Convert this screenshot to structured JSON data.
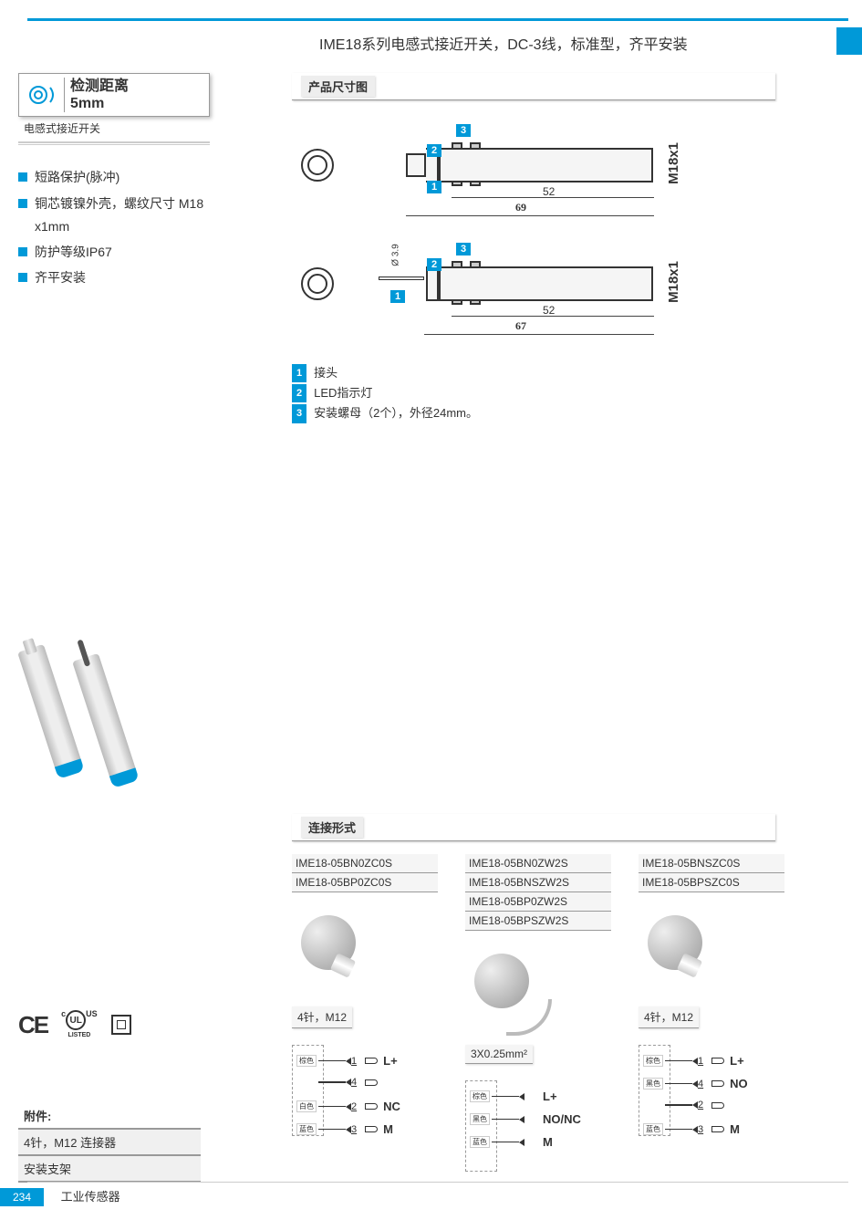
{
  "header": {
    "title": "IME18系列电感式接近开关，DC-3线，标准型，齐平安装"
  },
  "sidebar": {
    "detect_label": "检测距离",
    "detect_value": "5mm",
    "sub_label": "电感式接近开关",
    "features": [
      "短路保护(脉冲)",
      "铜芯镀镍外壳，螺纹尺寸 M18 x1mm",
      "防护等级IP67",
      "齐平安装"
    ],
    "acc_title": "附件:",
    "acc_items": [
      "4针，M12 连接器",
      "安装支架"
    ],
    "cert": {
      "ce": "CE",
      "ul_top": "c",
      "ul_right": "US",
      "ul_listed": "LISTED"
    }
  },
  "dim": {
    "section_title": "产品尺寸图",
    "top": {
      "len1": "52",
      "len_total": "69",
      "thread": "M18x1",
      "n1": "1",
      "n2": "2",
      "n3": "3"
    },
    "bot": {
      "len1": "52",
      "len_total": "67",
      "thread": "M18x1",
      "cable_d": "Ø 3.9",
      "n1": "1",
      "n2": "2",
      "n3": "3"
    },
    "legend": [
      {
        "n": "1",
        "txt": "接头"
      },
      {
        "n": "2",
        "txt": "LED指示灯"
      },
      {
        "n": "3",
        "txt": "安装螺母（2个），外径24mm。"
      }
    ]
  },
  "conn": {
    "section_title": "连接形式",
    "columns": [
      {
        "parts": [
          "IME18-05BN0ZC0S",
          "IME18-05BP0ZC0S"
        ],
        "conn_label": "4针，M12",
        "type": "connector",
        "pins": [
          {
            "color": "棕色",
            "num": "1",
            "label": "L+"
          },
          {
            "color": "",
            "num": "4",
            "label": ""
          },
          {
            "color": "白色",
            "num": "2",
            "label": "NC"
          },
          {
            "color": "蓝色",
            "num": "3",
            "label": "M"
          }
        ]
      },
      {
        "parts": [
          "IME18-05BN0ZW2S",
          "IME18-05BNSZW2S",
          "IME18-05BP0ZW2S",
          "IME18-05BPSZW2S"
        ],
        "conn_label": "3X0.25mm²",
        "type": "cable",
        "pins": [
          {
            "color": "棕色",
            "num": "",
            "label": "L+"
          },
          {
            "color": "黑色",
            "num": "",
            "label": "NO/NC"
          },
          {
            "color": "蓝色",
            "num": "",
            "label": "M"
          }
        ]
      },
      {
        "parts": [
          "IME18-05BNSZC0S",
          "IME18-05BPSZC0S"
        ],
        "conn_label": "4针，M12",
        "type": "connector",
        "pins": [
          {
            "color": "棕色",
            "num": "1",
            "label": "L+"
          },
          {
            "color": "黑色",
            "num": "4",
            "label": "NO"
          },
          {
            "color": "",
            "num": "2",
            "label": ""
          },
          {
            "color": "蓝色",
            "num": "3",
            "label": "M"
          }
        ]
      }
    ]
  },
  "footer": {
    "page": "234",
    "caption": "工业传感器"
  },
  "colors": {
    "accent": "#0099d8",
    "gray": "#999999",
    "lightgray": "#f0f0f0"
  }
}
